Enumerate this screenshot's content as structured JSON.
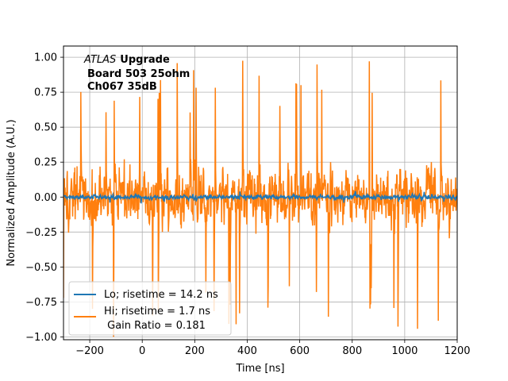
{
  "chart_data": {
    "type": "line",
    "xlabel": "Time [ns]",
    "ylabel": "Normalized Amplitude (A.U.)",
    "xlim": [
      -300,
      1200
    ],
    "ylim": [
      -1.02,
      1.08
    ],
    "x_ticks": [
      -200,
      0,
      200,
      400,
      600,
      800,
      1000,
      1200
    ],
    "y_ticks": [
      -1.0,
      -0.75,
      -0.5,
      -0.25,
      0.0,
      0.25,
      0.5,
      0.75,
      1.0
    ],
    "x_tick_labels": [
      "−200",
      "0",
      "200",
      "400",
      "600",
      "800",
      "1000",
      "1200"
    ],
    "y_tick_labels": [
      "−1.00",
      "−0.75",
      "−0.50",
      "−0.25",
      "0.00",
      "0.25",
      "0.50",
      "0.75",
      "1.00"
    ],
    "grid": true,
    "legend_position": "lower-left",
    "annotation": {
      "line1_italic": "ATLAS",
      "line1_bold": "Upgrade",
      "line2": "Board 503 25ohm",
      "line3": "Ch067 35dB"
    },
    "series": [
      {
        "name": "Lo; risetime = 14.2 ns",
        "color": "#1f77b4",
        "x_range": [
          -300,
          1200
        ],
        "amplitude_range": [
          -0.05,
          0.05
        ],
        "description_values": "low-amplitude noise centred on 0.0"
      },
      {
        "name": "Hi; risetime = 1.7 ns",
        "name_line2": " Gain Ratio = 0.181",
        "color": "#ff7f0e",
        "x_range": [
          -300,
          1200
        ],
        "amplitude_range": [
          -1.0,
          1.0
        ],
        "description_values": "high-amplitude noise centred on 0.0"
      }
    ]
  }
}
